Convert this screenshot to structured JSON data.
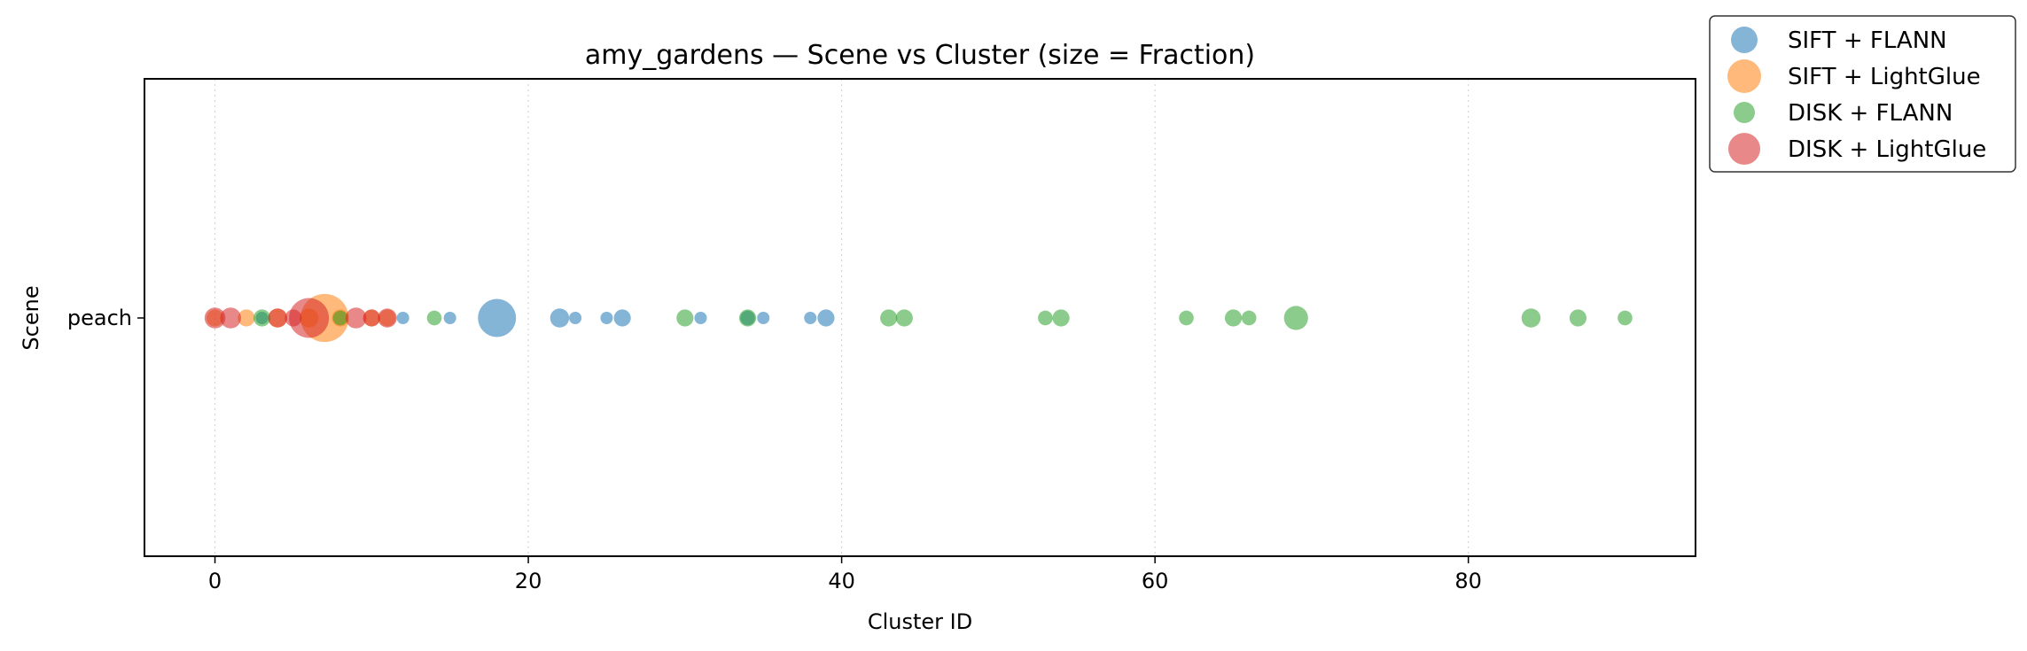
{
  "chart_data": {
    "type": "scatter",
    "title": "amy_gardens — Scene vs Cluster (size = Fraction)",
    "xlabel": "Cluster ID",
    "ylabel": "Scene",
    "xlim": [
      -4.5,
      94.5
    ],
    "xticks": [
      0,
      20,
      40,
      60,
      80
    ],
    "x_tick_labels": [
      "0",
      "20",
      "40",
      "60",
      "80"
    ],
    "categories": [
      "peach"
    ],
    "grid": "x-axis, dotted",
    "legend_position": "outside top-right",
    "series": [
      {
        "name": "SIFT + FLANN",
        "color": "#1f77b4",
        "points": [
          {
            "x": 3,
            "y": "peach",
            "fraction": 0.02
          },
          {
            "x": 12,
            "y": "peach",
            "fraction": 0.02
          },
          {
            "x": 15,
            "y": "peach",
            "fraction": 0.02
          },
          {
            "x": 18,
            "y": "peach",
            "fraction": 0.2
          },
          {
            "x": 22,
            "y": "peach",
            "fraction": 0.05
          },
          {
            "x": 23,
            "y": "peach",
            "fraction": 0.02
          },
          {
            "x": 25,
            "y": "peach",
            "fraction": 0.02
          },
          {
            "x": 26,
            "y": "peach",
            "fraction": 0.04
          },
          {
            "x": 31,
            "y": "peach",
            "fraction": 0.02
          },
          {
            "x": 34,
            "y": "peach",
            "fraction": 0.03
          },
          {
            "x": 35,
            "y": "peach",
            "fraction": 0.02
          },
          {
            "x": 38,
            "y": "peach",
            "fraction": 0.02
          },
          {
            "x": 39,
            "y": "peach",
            "fraction": 0.04
          }
        ]
      },
      {
        "name": "SIFT + LightGlue",
        "color": "#ff7f0e",
        "points": [
          {
            "x": 0,
            "y": "peach",
            "fraction": 0.04
          },
          {
            "x": 2,
            "y": "peach",
            "fraction": 0.04
          },
          {
            "x": 4,
            "y": "peach",
            "fraction": 0.05
          },
          {
            "x": 6,
            "y": "peach",
            "fraction": 0.05
          },
          {
            "x": 7,
            "y": "peach",
            "fraction": 0.32
          },
          {
            "x": 8,
            "y": "peach",
            "fraction": 0.04
          },
          {
            "x": 10,
            "y": "peach",
            "fraction": 0.04
          },
          {
            "x": 11,
            "y": "peach",
            "fraction": 0.04
          }
        ]
      },
      {
        "name": "DISK + FLANN",
        "color": "#2ca02c",
        "points": [
          {
            "x": 3,
            "y": "peach",
            "fraction": 0.04
          },
          {
            "x": 8,
            "y": "peach",
            "fraction": 0.03
          },
          {
            "x": 14,
            "y": "peach",
            "fraction": 0.03
          },
          {
            "x": 30,
            "y": "peach",
            "fraction": 0.04
          },
          {
            "x": 34,
            "y": "peach",
            "fraction": 0.04
          },
          {
            "x": 43,
            "y": "peach",
            "fraction": 0.04
          },
          {
            "x": 44,
            "y": "peach",
            "fraction": 0.04
          },
          {
            "x": 53,
            "y": "peach",
            "fraction": 0.03
          },
          {
            "x": 54,
            "y": "peach",
            "fraction": 0.04
          },
          {
            "x": 62,
            "y": "peach",
            "fraction": 0.03
          },
          {
            "x": 65,
            "y": "peach",
            "fraction": 0.04
          },
          {
            "x": 66,
            "y": "peach",
            "fraction": 0.03
          },
          {
            "x": 69,
            "y": "peach",
            "fraction": 0.08
          },
          {
            "x": 84,
            "y": "peach",
            "fraction": 0.05
          },
          {
            "x": 87,
            "y": "peach",
            "fraction": 0.04
          },
          {
            "x": 90,
            "y": "peach",
            "fraction": 0.03
          }
        ]
      },
      {
        "name": "DISK + LightGlue",
        "color": "#d62728",
        "points": [
          {
            "x": 0,
            "y": "peach",
            "fraction": 0.06
          },
          {
            "x": 1,
            "y": "peach",
            "fraction": 0.06
          },
          {
            "x": 4,
            "y": "peach",
            "fraction": 0.05
          },
          {
            "x": 5,
            "y": "peach",
            "fraction": 0.04
          },
          {
            "x": 6,
            "y": "peach",
            "fraction": 0.22
          },
          {
            "x": 9,
            "y": "peach",
            "fraction": 0.06
          },
          {
            "x": 10,
            "y": "peach",
            "fraction": 0.04
          },
          {
            "x": 11,
            "y": "peach",
            "fraction": 0.05
          }
        ]
      }
    ]
  }
}
